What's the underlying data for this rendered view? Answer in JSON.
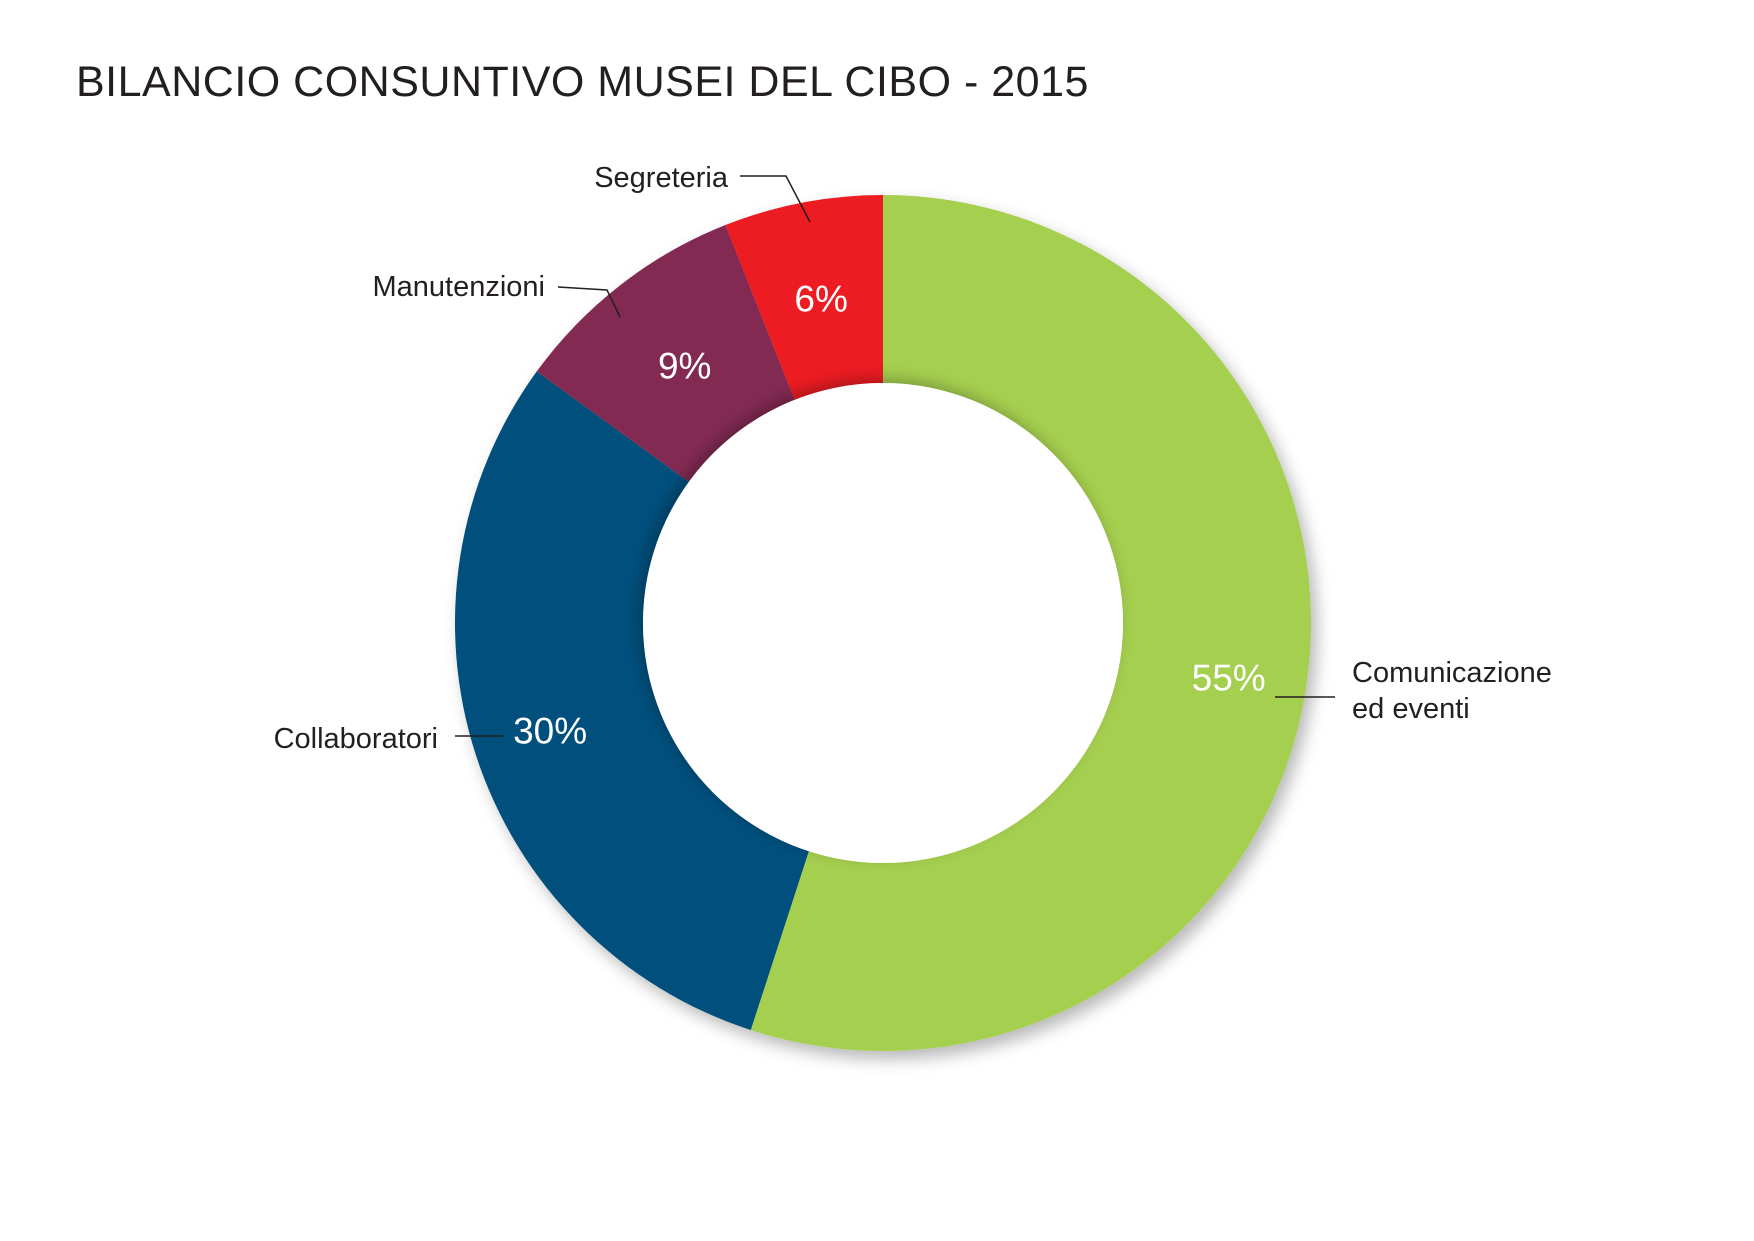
{
  "chart_data": {
    "type": "pie",
    "title": "BILANCIO CONSUNTIVO MUSEI DEL CIBO - 2015",
    "slices": [
      {
        "label": "Comunicazione ed eventi",
        "label_lines": [
          "Comunicazione",
          "ed eventi"
        ],
        "value": 55,
        "value_label": "55%",
        "color": "#a5cf4f"
      },
      {
        "label": "Collaboratori",
        "label_lines": [
          "Collaboratori"
        ],
        "value": 30,
        "value_label": "30%",
        "color": "#06507b"
      },
      {
        "label": "Manutenzioni",
        "label_lines": [
          "Manutenzioni"
        ],
        "value": 9,
        "value_label": "9%",
        "color": "#832952"
      },
      {
        "label": "Segreteria",
        "label_lines": [
          "Segreteria"
        ],
        "value": 6,
        "value_label": "6%",
        "color": "#ec1c24"
      }
    ]
  }
}
